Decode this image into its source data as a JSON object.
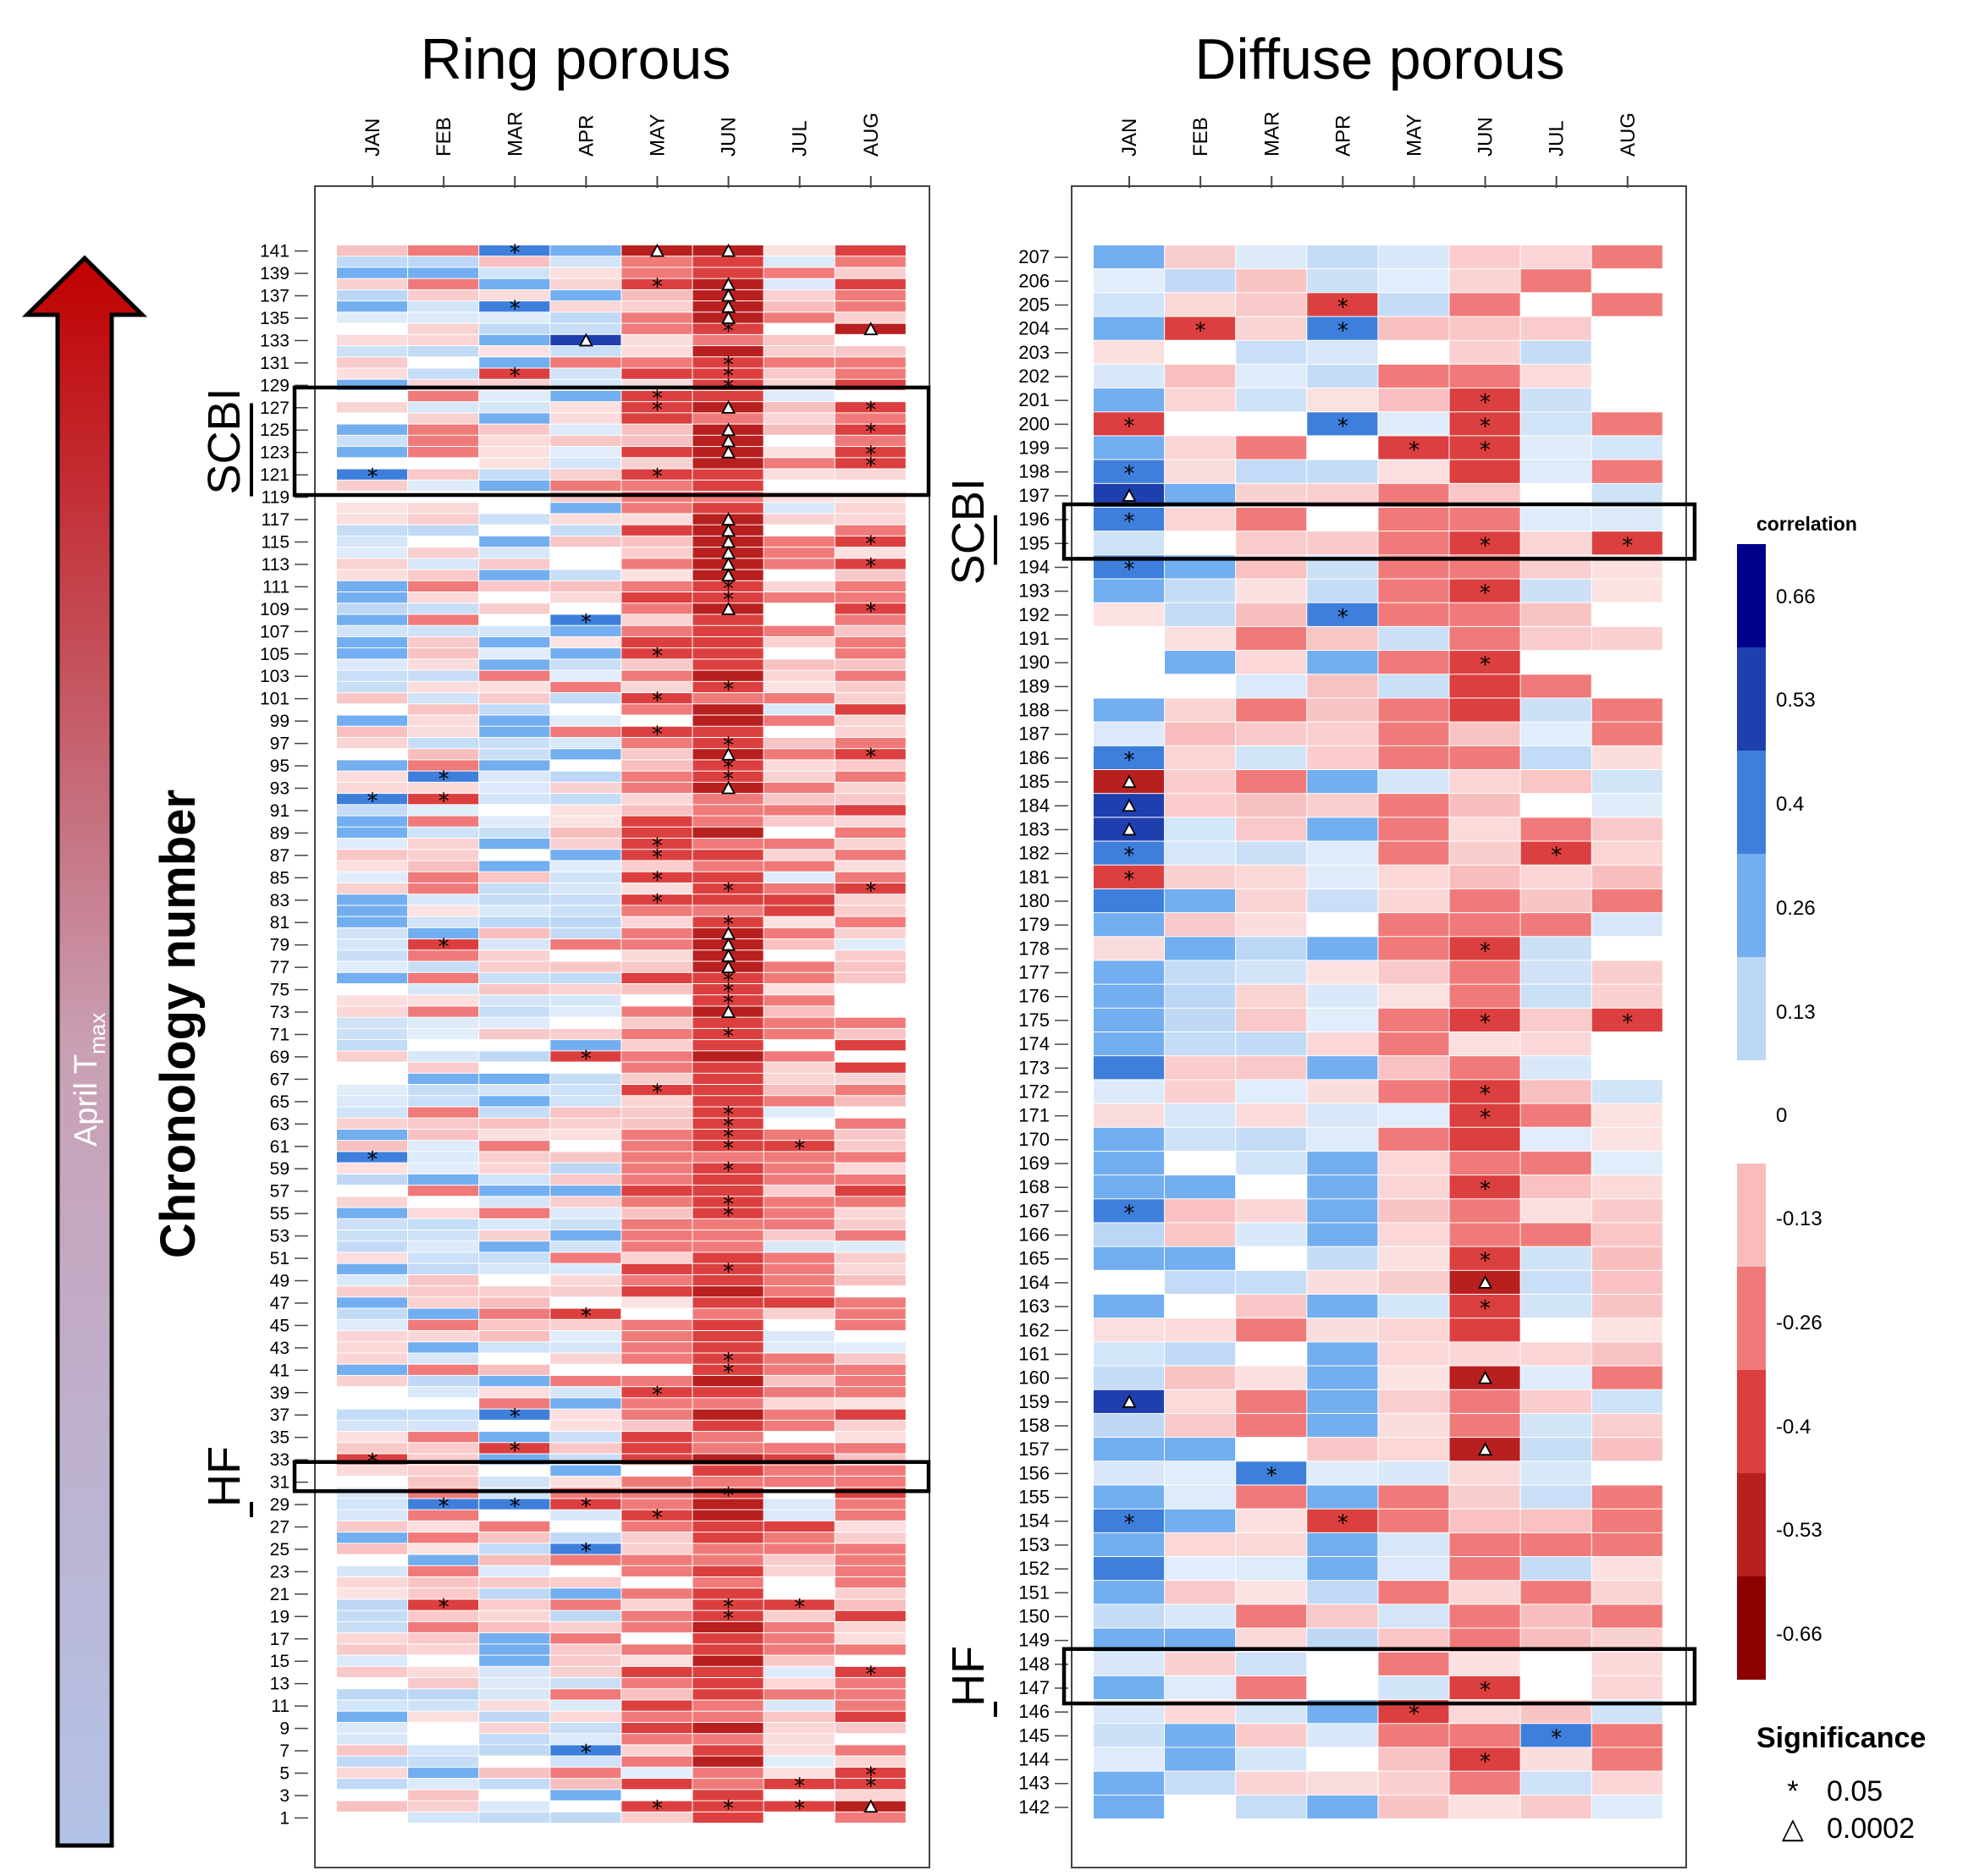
{
  "chart_data": [
    {
      "type": "heatmap",
      "title": "Ring porous",
      "months": [
        "JAN",
        "FEB",
        "MAR",
        "APR",
        "MAY",
        "JUN",
        "JUL",
        "AUG"
      ],
      "row_labels": [
        "141",
        "139",
        "137",
        "135",
        "133",
        "131",
        "129",
        "127",
        "125",
        "123",
        "121",
        "119",
        "117",
        "115",
        "113",
        "111",
        "109",
        "107",
        "105",
        "103",
        "101",
        "99",
        "97",
        "95",
        "93",
        "91",
        "89",
        "87",
        "85",
        "83",
        "81",
        "79",
        "77",
        "75",
        "73",
        "71",
        "69",
        "67",
        "65",
        "63",
        "61",
        "59",
        "57",
        "55",
        "53",
        "51",
        "49",
        "47",
        "45",
        "43",
        "41",
        "39",
        "37",
        "35",
        "33",
        "31",
        "29",
        "27",
        "25",
        "23",
        "21",
        "19",
        "17",
        "15",
        "13",
        "11",
        "9",
        "7",
        "5",
        "3",
        "1"
      ],
      "row_first": 141,
      "row_last": 1,
      "groups": [
        {
          "label": "SCBI",
          "rows": [
            120,
            128
          ]
        },
        {
          "label": "HF",
          "rows": [
            31,
            32
          ]
        }
      ],
      "month_profile": [
        0.04,
        -0.02,
        0.02,
        0.0,
        -0.14,
        -0.3,
        -0.11,
        -0.13
      ],
      "significance": [
        {
          "row": 141,
          "month": "MAR",
          "level": "*"
        },
        {
          "row": 141,
          "month": "MAY",
          "level": "△"
        },
        {
          "row": 141,
          "month": "JUN",
          "level": "△"
        },
        {
          "row": 138,
          "month": "MAY",
          "level": "*"
        },
        {
          "row": 138,
          "month": "JUN",
          "level": "△"
        },
        {
          "row": 137,
          "month": "JUN",
          "level": "△"
        },
        {
          "row": 136,
          "month": "MAR",
          "level": "*"
        },
        {
          "row": 136,
          "month": "JUN",
          "level": "△"
        },
        {
          "row": 135,
          "month": "JUN",
          "level": "△"
        },
        {
          "row": 134,
          "month": "JUN",
          "level": "*"
        },
        {
          "row": 134,
          "month": "AUG",
          "level": "△"
        },
        {
          "row": 133,
          "month": "APR",
          "level": "△"
        },
        {
          "row": 131,
          "month": "JUN",
          "level": "*"
        },
        {
          "row": 130,
          "month": "MAR",
          "level": "*"
        },
        {
          "row": 130,
          "month": "JUN",
          "level": "*"
        },
        {
          "row": 129,
          "month": "JUN",
          "level": "*"
        },
        {
          "row": 128,
          "month": "MAY",
          "level": "*"
        },
        {
          "row": 127,
          "month": "MAY",
          "level": "*"
        },
        {
          "row": 127,
          "month": "JUN",
          "level": "△"
        },
        {
          "row": 127,
          "month": "AUG",
          "level": "*"
        },
        {
          "row": 125,
          "month": "JUN",
          "level": "△"
        },
        {
          "row": 125,
          "month": "AUG",
          "level": "*"
        },
        {
          "row": 124,
          "month": "JUN",
          "level": "△"
        },
        {
          "row": 123,
          "month": "JUN",
          "level": "△"
        },
        {
          "row": 123,
          "month": "AUG",
          "level": "*"
        },
        {
          "row": 122,
          "month": "AUG",
          "level": "*"
        },
        {
          "row": 121,
          "month": "JAN",
          "level": "*"
        },
        {
          "row": 121,
          "month": "MAY",
          "level": "*"
        },
        {
          "row": 117,
          "month": "JUN",
          "level": "△"
        },
        {
          "row": 116,
          "month": "JUN",
          "level": "△"
        },
        {
          "row": 115,
          "month": "JUN",
          "level": "△"
        },
        {
          "row": 115,
          "month": "AUG",
          "level": "*"
        },
        {
          "row": 114,
          "month": "JUN",
          "level": "△"
        },
        {
          "row": 113,
          "month": "JUN",
          "level": "△"
        },
        {
          "row": 113,
          "month": "AUG",
          "level": "*"
        },
        {
          "row": 112,
          "month": "JUN",
          "level": "△"
        },
        {
          "row": 111,
          "month": "JUN",
          "level": "*"
        },
        {
          "row": 110,
          "month": "JUN",
          "level": "*"
        },
        {
          "row": 109,
          "month": "JUN",
          "level": "△"
        },
        {
          "row": 109,
          "month": "AUG",
          "level": "*"
        },
        {
          "row": 108,
          "month": "APR",
          "level": "*"
        },
        {
          "row": 105,
          "month": "MAY",
          "level": "*"
        },
        {
          "row": 102,
          "month": "JUN",
          "level": "*"
        },
        {
          "row": 101,
          "month": "MAY",
          "level": "*"
        },
        {
          "row": 98,
          "month": "MAY",
          "level": "*"
        },
        {
          "row": 97,
          "month": "JUN",
          "level": "*"
        },
        {
          "row": 96,
          "month": "JUN",
          "level": "△"
        },
        {
          "row": 96,
          "month": "AUG",
          "level": "*"
        },
        {
          "row": 95,
          "month": "JUN",
          "level": "*"
        },
        {
          "row": 94,
          "month": "FEB",
          "level": "*"
        },
        {
          "row": 94,
          "month": "JUN",
          "level": "*"
        },
        {
          "row": 93,
          "month": "JUN",
          "level": "△"
        },
        {
          "row": 92,
          "month": "JAN",
          "level": "*"
        },
        {
          "row": 92,
          "month": "FEB",
          "level": "*"
        },
        {
          "row": 88,
          "month": "MAY",
          "level": "*"
        },
        {
          "row": 87,
          "month": "MAY",
          "level": "*"
        },
        {
          "row": 85,
          "month": "MAY",
          "level": "*"
        },
        {
          "row": 84,
          "month": "JUN",
          "level": "*"
        },
        {
          "row": 84,
          "month": "AUG",
          "level": "*"
        },
        {
          "row": 83,
          "month": "MAY",
          "level": "*"
        },
        {
          "row": 81,
          "month": "JUN",
          "level": "*"
        },
        {
          "row": 80,
          "month": "JUN",
          "level": "△"
        },
        {
          "row": 79,
          "month": "FEB",
          "level": "*"
        },
        {
          "row": 79,
          "month": "JUN",
          "level": "△"
        },
        {
          "row": 78,
          "month": "JUN",
          "level": "△"
        },
        {
          "row": 77,
          "month": "JUN",
          "level": "△"
        },
        {
          "row": 76,
          "month": "JUN",
          "level": "*"
        },
        {
          "row": 75,
          "month": "JUN",
          "level": "*"
        },
        {
          "row": 74,
          "month": "JUN",
          "level": "*"
        },
        {
          "row": 73,
          "month": "JUN",
          "level": "△"
        },
        {
          "row": 71,
          "month": "JUN",
          "level": "*"
        },
        {
          "row": 69,
          "month": "APR",
          "level": "*"
        },
        {
          "row": 66,
          "month": "MAY",
          "level": "*"
        },
        {
          "row": 64,
          "month": "JUN",
          "level": "*"
        },
        {
          "row": 63,
          "month": "JUN",
          "level": "*"
        },
        {
          "row": 62,
          "month": "JUN",
          "level": "*"
        },
        {
          "row": 61,
          "month": "JUN",
          "level": "*"
        },
        {
          "row": 61,
          "month": "JUL",
          "level": "*"
        },
        {
          "row": 60,
          "month": "JAN",
          "level": "*"
        },
        {
          "row": 59,
          "month": "JUN",
          "level": "*"
        },
        {
          "row": 56,
          "month": "JUN",
          "level": "*"
        },
        {
          "row": 55,
          "month": "JUN",
          "level": "*"
        },
        {
          "row": 50,
          "month": "JUN",
          "level": "*"
        },
        {
          "row": 46,
          "month": "APR",
          "level": "*"
        },
        {
          "row": 42,
          "month": "JUN",
          "level": "*"
        },
        {
          "row": 41,
          "month": "JUN",
          "level": "*"
        },
        {
          "row": 39,
          "month": "MAY",
          "level": "*"
        },
        {
          "row": 37,
          "month": "MAR",
          "level": "*"
        },
        {
          "row": 34,
          "month": "MAR",
          "level": "*"
        },
        {
          "row": 33,
          "month": "JAN",
          "level": "*"
        },
        {
          "row": 30,
          "month": "JUN",
          "level": "*"
        },
        {
          "row": 29,
          "month": "FEB",
          "level": "*"
        },
        {
          "row": 29,
          "month": "MAR",
          "level": "*"
        },
        {
          "row": 29,
          "month": "APR",
          "level": "*"
        },
        {
          "row": 28,
          "month": "MAY",
          "level": "*"
        },
        {
          "row": 25,
          "month": "APR",
          "level": "*"
        },
        {
          "row": 20,
          "month": "FEB",
          "level": "*"
        },
        {
          "row": 20,
          "month": "JUN",
          "level": "*"
        },
        {
          "row": 20,
          "month": "JUL",
          "level": "*"
        },
        {
          "row": 19,
          "month": "JUN",
          "level": "*"
        },
        {
          "row": 14,
          "month": "AUG",
          "level": "*"
        },
        {
          "row": 7,
          "month": "APR",
          "level": "*"
        },
        {
          "row": 5,
          "month": "AUG",
          "level": "*"
        },
        {
          "row": 4,
          "month": "JUL",
          "level": "*"
        },
        {
          "row": 4,
          "month": "AUG",
          "level": "*"
        },
        {
          "row": 2,
          "month": "MAY",
          "level": "*"
        },
        {
          "row": 2,
          "month": "JUN",
          "level": "*"
        },
        {
          "row": 2,
          "month": "JUL",
          "level": "*"
        },
        {
          "row": 2,
          "month": "AUG",
          "level": "△"
        }
      ]
    },
    {
      "type": "heatmap",
      "title": "Diffuse porous",
      "months": [
        "JAN",
        "FEB",
        "MAR",
        "APR",
        "MAY",
        "JUN",
        "JUL",
        "AUG"
      ],
      "row_labels": [
        "207",
        "206",
        "205",
        "204",
        "203",
        "202",
        "201",
        "200",
        "199",
        "198",
        "197",
        "196",
        "195",
        "194",
        "193",
        "192",
        "191",
        "190",
        "189",
        "188",
        "187",
        "186",
        "185",
        "184",
        "183",
        "182",
        "181",
        "180",
        "179",
        "178",
        "177",
        "176",
        "175",
        "174",
        "173",
        "172",
        "171",
        "170",
        "169",
        "168",
        "167",
        "166",
        "165",
        "164",
        "163",
        "162",
        "161",
        "160",
        "159",
        "158",
        "157",
        "156",
        "155",
        "154",
        "153",
        "152",
        "151",
        "150",
        "149",
        "148",
        "147",
        "146",
        "145",
        "144",
        "143",
        "142"
      ],
      "row_first": 207,
      "row_last": 142,
      "groups": [
        {
          "label": "SCBI",
          "rows": [
            195,
            196
          ]
        },
        {
          "label": "HF",
          "rows": [
            147,
            148
          ]
        }
      ],
      "month_profile": [
        0.12,
        0.03,
        -0.02,
        0.04,
        -0.05,
        -0.15,
        -0.04,
        -0.08
      ],
      "significance": [
        {
          "row": 205,
          "month": "APR",
          "level": "*"
        },
        {
          "row": 204,
          "month": "FEB",
          "level": "*"
        },
        {
          "row": 204,
          "month": "APR",
          "level": "*"
        },
        {
          "row": 201,
          "month": "JUN",
          "level": "*"
        },
        {
          "row": 200,
          "month": "JAN",
          "level": "*"
        },
        {
          "row": 200,
          "month": "APR",
          "level": "*"
        },
        {
          "row": 200,
          "month": "JUN",
          "level": "*"
        },
        {
          "row": 199,
          "month": "MAY",
          "level": "*"
        },
        {
          "row": 199,
          "month": "JUN",
          "level": "*"
        },
        {
          "row": 198,
          "month": "JAN",
          "level": "*"
        },
        {
          "row": 197,
          "month": "JAN",
          "level": "△"
        },
        {
          "row": 196,
          "month": "JAN",
          "level": "*"
        },
        {
          "row": 195,
          "month": "JUN",
          "level": "*"
        },
        {
          "row": 195,
          "month": "AUG",
          "level": "*"
        },
        {
          "row": 194,
          "month": "JAN",
          "level": "*"
        },
        {
          "row": 193,
          "month": "JUN",
          "level": "*"
        },
        {
          "row": 192,
          "month": "APR",
          "level": "*"
        },
        {
          "row": 190,
          "month": "JUN",
          "level": "*"
        },
        {
          "row": 186,
          "month": "JAN",
          "level": "*"
        },
        {
          "row": 185,
          "month": "JAN",
          "level": "△"
        },
        {
          "row": 184,
          "month": "JAN",
          "level": "△"
        },
        {
          "row": 183,
          "month": "JAN",
          "level": "△"
        },
        {
          "row": 182,
          "month": "JAN",
          "level": "*"
        },
        {
          "row": 182,
          "month": "JUL",
          "level": "*"
        },
        {
          "row": 181,
          "month": "JAN",
          "level": "*"
        },
        {
          "row": 178,
          "month": "JUN",
          "level": "*"
        },
        {
          "row": 175,
          "month": "JUN",
          "level": "*"
        },
        {
          "row": 175,
          "month": "AUG",
          "level": "*"
        },
        {
          "row": 172,
          "month": "JUN",
          "level": "*"
        },
        {
          "row": 171,
          "month": "JUN",
          "level": "*"
        },
        {
          "row": 168,
          "month": "JUN",
          "level": "*"
        },
        {
          "row": 167,
          "month": "JAN",
          "level": "*"
        },
        {
          "row": 165,
          "month": "JUN",
          "level": "*"
        },
        {
          "row": 164,
          "month": "JUN",
          "level": "△"
        },
        {
          "row": 163,
          "month": "JUN",
          "level": "*"
        },
        {
          "row": 160,
          "month": "JUN",
          "level": "△"
        },
        {
          "row": 159,
          "month": "JAN",
          "level": "△"
        },
        {
          "row": 157,
          "month": "JUN",
          "level": "△"
        },
        {
          "row": 156,
          "month": "MAR",
          "level": "*"
        },
        {
          "row": 154,
          "month": "JAN",
          "level": "*"
        },
        {
          "row": 154,
          "month": "APR",
          "level": "*"
        },
        {
          "row": 147,
          "month": "JUN",
          "level": "*"
        },
        {
          "row": 146,
          "month": "MAY",
          "level": "*"
        },
        {
          "row": 145,
          "month": "JUL",
          "level": "*"
        },
        {
          "row": 144,
          "month": "JUN",
          "level": "*"
        }
      ]
    }
  ],
  "ylabel": "Chronology number",
  "arrow_label": "April T",
  "arrow_label_sub": "max",
  "legend": {
    "title": "correlation",
    "ticks": [
      "0.66",
      "0.53",
      "0.4",
      "0.26",
      "0.13",
      "0",
      "-0.13",
      "-0.26",
      "-0.4",
      "-0.53",
      "-0.66"
    ],
    "colors": [
      "#00008b",
      "#1f3fae",
      "#3f7fdc",
      "#72aef0",
      "#bcd7f5",
      "#ffffff",
      "#f8bcbc",
      "#f07a7a",
      "#dc3f3f",
      "#b81f1f",
      "#8b0000"
    ]
  },
  "significance_legend": {
    "title": "Significance",
    "items": [
      {
        "symbol": "*",
        "value": "0.05"
      },
      {
        "symbol": "△",
        "value": "0.0002"
      }
    ]
  }
}
